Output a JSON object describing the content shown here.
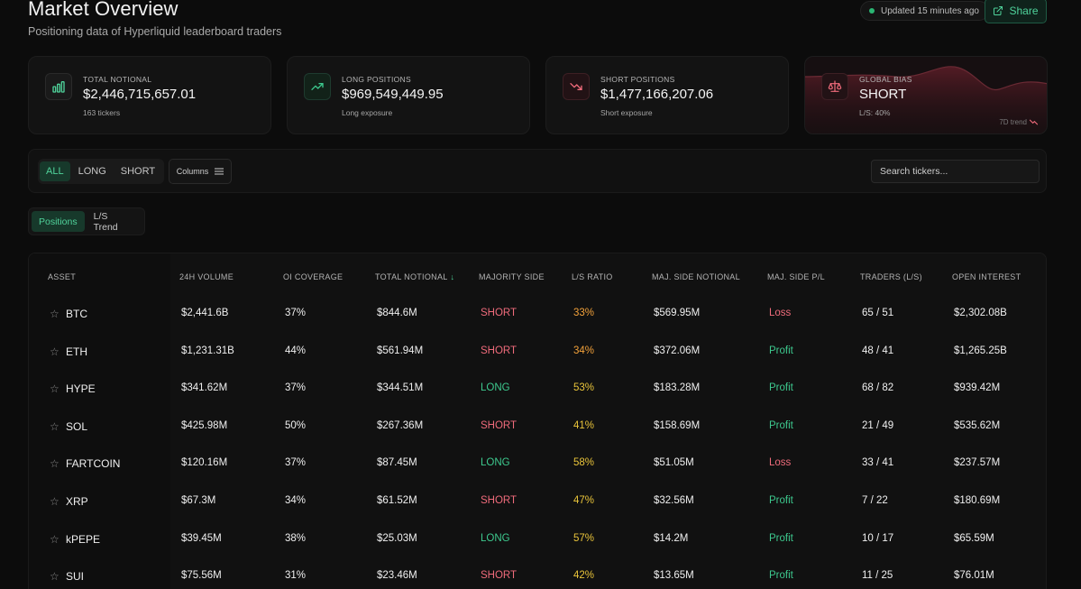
{
  "header": {
    "title": "Market Overview",
    "subtitle": "Positioning data of Hyperliquid leaderboard traders",
    "updated": "Updated 15 minutes ago",
    "share_label": "Share"
  },
  "cards": [
    {
      "label": "TOTAL NOTIONAL",
      "value": "$2,446,715,657.01",
      "sub": "163 tickers",
      "icon": "bar-chart-icon"
    },
    {
      "label": "LONG POSITIONS",
      "value": "$969,549,449.95",
      "sub": "Long exposure",
      "icon": "trending-up-icon"
    },
    {
      "label": "SHORT POSITIONS",
      "value": "$1,477,166,207.06",
      "sub": "Short exposure",
      "icon": "trending-down-icon"
    },
    {
      "label": "GLOBAL BIAS",
      "value": "SHORT",
      "sub": "L/S: 40%",
      "icon": "scale-icon",
      "trend_label": "7D trend"
    }
  ],
  "filters": {
    "sides": [
      "ALL",
      "LONG",
      "SHORT"
    ],
    "active_side": "ALL",
    "columns_label": "Columns",
    "search_placeholder": "Search tickers..."
  },
  "views": {
    "tabs": [
      "Positions",
      "L/S Trend"
    ],
    "active": "Positions"
  },
  "colors": {
    "accent": "#4fd39b",
    "short": "#ef6b7b",
    "long": "#3dc98e",
    "ratio_orange": "#f2a13a",
    "ratio_yellow": "#e9c43a"
  },
  "table": {
    "headers": [
      "ASSET",
      "24H VOLUME",
      "OI COVERAGE",
      "TOTAL NOTIONAL",
      "MAJORITY SIDE",
      "L/S RATIO",
      "MAJ. SIDE NOTIONAL",
      "MAJ. SIDE P/L",
      "TRADERS (L/S)",
      "OPEN INTEREST"
    ],
    "sort_column": "TOTAL NOTIONAL",
    "rows": [
      {
        "asset": "BTC",
        "volume": "$2,441.6B",
        "oi": "37%",
        "notional": "$844.6M",
        "side": "SHORT",
        "ratio": "33%",
        "maj_notional": "$569.95M",
        "pl": "Loss",
        "traders": "65 / 51",
        "open_interest": "$2,302.08B"
      },
      {
        "asset": "ETH",
        "volume": "$1,231.31B",
        "oi": "44%",
        "notional": "$561.94M",
        "side": "SHORT",
        "ratio": "34%",
        "maj_notional": "$372.06M",
        "pl": "Profit",
        "traders": "48 / 41",
        "open_interest": "$1,265.25B"
      },
      {
        "asset": "HYPE",
        "volume": "$341.62M",
        "oi": "37%",
        "notional": "$344.51M",
        "side": "LONG",
        "ratio": "53%",
        "maj_notional": "$183.28M",
        "pl": "Profit",
        "traders": "68 / 82",
        "open_interest": "$939.42M"
      },
      {
        "asset": "SOL",
        "volume": "$425.98M",
        "oi": "50%",
        "notional": "$267.36M",
        "side": "SHORT",
        "ratio": "41%",
        "maj_notional": "$158.69M",
        "pl": "Profit",
        "traders": "21 / 49",
        "open_interest": "$535.62M"
      },
      {
        "asset": "FARTCOIN",
        "volume": "$120.16M",
        "oi": "37%",
        "notional": "$87.45M",
        "side": "LONG",
        "ratio": "58%",
        "maj_notional": "$51.05M",
        "pl": "Loss",
        "traders": "33 / 41",
        "open_interest": "$237.57M"
      },
      {
        "asset": "XRP",
        "volume": "$67.3M",
        "oi": "34%",
        "notional": "$61.52M",
        "side": "SHORT",
        "ratio": "47%",
        "maj_notional": "$32.56M",
        "pl": "Profit",
        "traders": "7 / 22",
        "open_interest": "$180.69M"
      },
      {
        "asset": "kPEPE",
        "volume": "$39.45M",
        "oi": "38%",
        "notional": "$25.03M",
        "side": "LONG",
        "ratio": "57%",
        "maj_notional": "$14.2M",
        "pl": "Profit",
        "traders": "10 / 17",
        "open_interest": "$65.59M"
      },
      {
        "asset": "SUI",
        "volume": "$75.56M",
        "oi": "31%",
        "notional": "$23.46M",
        "side": "SHORT",
        "ratio": "42%",
        "maj_notional": "$13.65M",
        "pl": "Profit",
        "traders": "11 / 25",
        "open_interest": "$76.01M"
      }
    ]
  }
}
